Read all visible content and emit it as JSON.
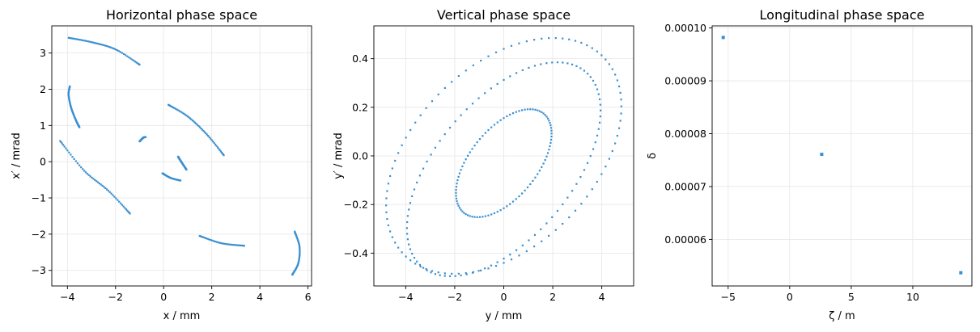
{
  "marker_color": "#3a8fd0",
  "chart_data": [
    {
      "type": "scatter",
      "title": "Horizontal phase space",
      "xlabel": "x / mm",
      "ylabel": "x′ / mrad",
      "xlim": [
        -4.65,
        6.15
      ],
      "ylim": [
        -3.43,
        3.75
      ],
      "xticks": [
        -4,
        -2,
        0,
        2,
        4,
        6
      ],
      "xtick_labels": [
        "−4",
        "−2",
        "0",
        "2",
        "4",
        "6"
      ],
      "yticks": [
        -3,
        -2,
        -1,
        0,
        1,
        2,
        3
      ],
      "ytick_labels": [
        "−3",
        "−2",
        "−1",
        "0",
        "1",
        "2",
        "3"
      ],
      "grid": true,
      "series": [
        {
          "curve": [
            [
              -3.95,
              3.42
            ],
            [
              -3.0,
              3.3
            ],
            [
              -2.0,
              3.1
            ],
            [
              -1.0,
              2.68
            ]
          ]
        },
        {
          "curve": [
            [
              -3.9,
              2.08
            ],
            [
              -3.95,
              1.85
            ],
            [
              -3.85,
              1.5
            ],
            [
              -3.65,
              1.15
            ],
            [
              -3.5,
              0.95
            ]
          ]
        },
        {
          "curve": [
            [
              0.2,
              1.57
            ],
            [
              1.0,
              1.25
            ],
            [
              1.8,
              0.75
            ],
            [
              2.5,
              0.18
            ]
          ]
        },
        {
          "curve": [
            [
              -1.0,
              0.56
            ],
            [
              -0.85,
              0.66
            ],
            [
              -0.75,
              0.68
            ]
          ]
        },
        {
          "curve": [
            [
              0.6,
              0.14
            ],
            [
              0.75,
              -0.02
            ],
            [
              0.95,
              -0.22
            ]
          ]
        },
        {
          "curve": [
            [
              -0.05,
              -0.32
            ],
            [
              0.3,
              -0.45
            ],
            [
              0.7,
              -0.52
            ]
          ]
        },
        {
          "curve": [
            [
              -4.3,
              0.57
            ],
            [
              -3.3,
              -0.25
            ],
            [
              -2.3,
              -0.8
            ],
            [
              -1.4,
              -1.43
            ]
          ]
        },
        {
          "curve": [
            [
              1.5,
              -2.05
            ],
            [
              2.4,
              -2.25
            ],
            [
              3.35,
              -2.32
            ]
          ]
        },
        {
          "curve": [
            [
              5.45,
              -1.93
            ],
            [
              5.65,
              -2.35
            ],
            [
              5.6,
              -2.8
            ],
            [
              5.35,
              -3.12
            ]
          ]
        }
      ]
    },
    {
      "type": "scatter",
      "title": "Vertical phase space",
      "xlabel": "y / mm",
      "ylabel": "y′ / mrad",
      "xlim": [
        -5.3,
        5.3
      ],
      "ylim": [
        -0.535,
        0.535
      ],
      "xticks": [
        -4,
        -2,
        0,
        2,
        4
      ],
      "xtick_labels": [
        "−4",
        "−2",
        "0",
        "2",
        "4"
      ],
      "yticks": [
        -0.4,
        -0.2,
        0.0,
        0.2,
        0.4
      ],
      "ytick_labels": [
        "−0.4",
        "−0.2",
        "0.0",
        "0.2",
        "0.4"
      ],
      "grid": true,
      "series": [
        {
          "ellipse": {
            "cx": 0,
            "cy": -0.03,
            "x_extent": 1.95,
            "y_extent": 0.222,
            "corr": 0.55
          }
        },
        {
          "ellipse": {
            "cx": 0,
            "cy": -0.055,
            "x_extent": 3.95,
            "y_extent": 0.44,
            "corr": 0.55
          }
        },
        {
          "ellipse": {
            "cx": 0,
            "cy": 0,
            "x_extent": 4.8,
            "y_extent": 0.485,
            "corr": 0.42
          }
        }
      ]
    },
    {
      "type": "scatter",
      "title": "Longitudinal phase space",
      "xlabel": "ζ / m",
      "ylabel": "δ",
      "xlim": [
        -6.3,
        14.8
      ],
      "ylim": [
        5.12e-05,
        0.0001004
      ],
      "xticks": [
        -5,
        0,
        5,
        10
      ],
      "xtick_labels": [
        "−5",
        "0",
        "5",
        "10"
      ],
      "yticks": [
        6e-05,
        7e-05,
        8e-05,
        9e-05,
        0.0001
      ],
      "ytick_labels": [
        "0.00006",
        "0.00007",
        "0.00008",
        "0.00009",
        "0.00010"
      ],
      "grid": true,
      "series": [
        {
          "points": [
            [
              -5.4,
              9.82e-05
            ],
            [
              2.6,
              7.61e-05
            ],
            [
              13.9,
              5.37e-05
            ]
          ]
        }
      ]
    }
  ]
}
